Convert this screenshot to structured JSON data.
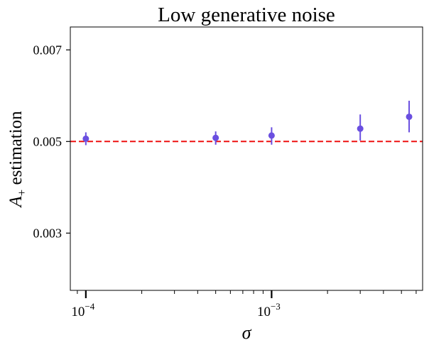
{
  "chart_data": {
    "type": "scatter",
    "title": "Low generative noise",
    "xlabel": "σ",
    "ylabel_main": "A",
    "ylabel_sub": "+",
    "ylabel_rest": " estimation",
    "x_scale": "log",
    "xlim": [
      8.25e-05,
      0.0065
    ],
    "ylim": [
      0.00175,
      0.0075
    ],
    "x_ticks": [
      {
        "value": 0.0001,
        "base": "10",
        "exp": "−4"
      },
      {
        "value": 0.001,
        "base": "10",
        "exp": "−3"
      }
    ],
    "y_ticks": [
      {
        "value": 0.003,
        "label": "0.003"
      },
      {
        "value": 0.005,
        "label": "0.005"
      },
      {
        "value": 0.007,
        "label": "0.007"
      }
    ],
    "reference_line": {
      "y": 0.005,
      "color": "#ee1111",
      "style": "dashed"
    },
    "series": [
      {
        "color": "#6a4fe0",
        "points": [
          {
            "x": 0.0001,
            "y": 0.00506,
            "err_low": 0.00492,
            "err_high": 0.0052
          },
          {
            "x": 0.0005,
            "y": 0.00508,
            "err_low": 0.00493,
            "err_high": 0.00522
          },
          {
            "x": 0.001,
            "y": 0.00513,
            "err_low": 0.00493,
            "err_high": 0.00531
          },
          {
            "x": 0.003,
            "y": 0.00528,
            "err_low": 0.00502,
            "err_high": 0.00559
          },
          {
            "x": 0.0055,
            "y": 0.00554,
            "err_low": 0.0052,
            "err_high": 0.00589
          }
        ]
      }
    ],
    "grid": false,
    "legend": "none"
  }
}
